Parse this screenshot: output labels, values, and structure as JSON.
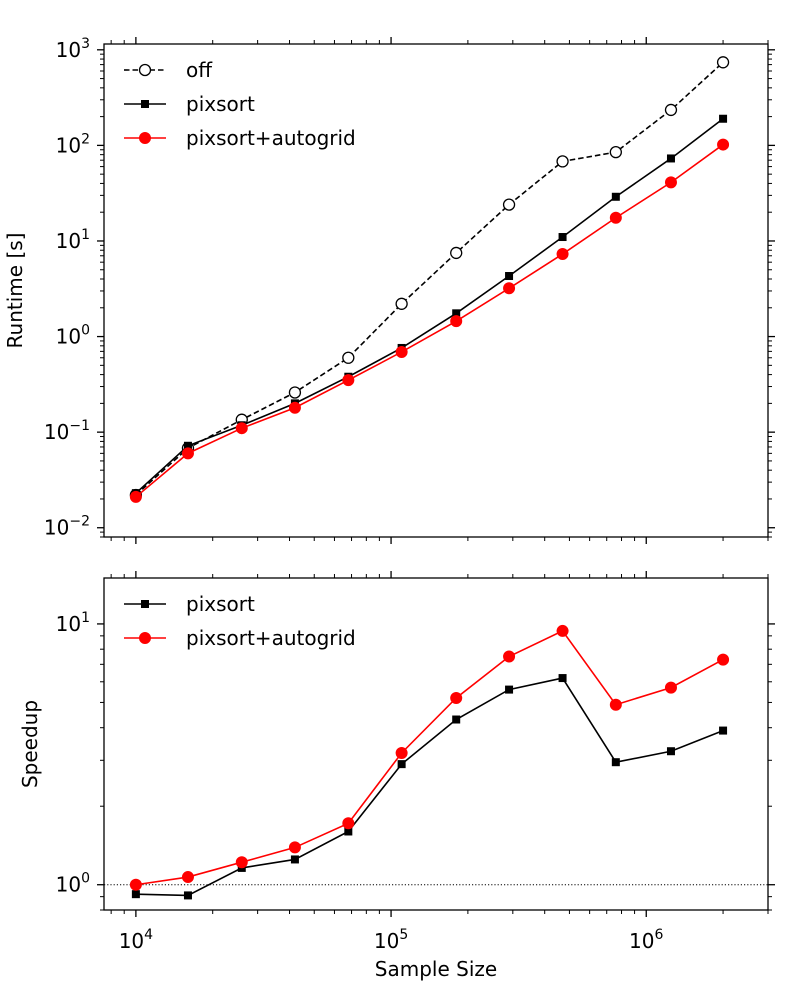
{
  "chart_data": [
    {
      "type": "line",
      "xscale": "log",
      "yscale": "log",
      "xlim": [
        7500,
        3000000
      ],
      "ylim": [
        0.008,
        1150
      ],
      "ylabel": "Runtime [s]",
      "xlabel": "",
      "legend_position": "top-left",
      "yticks": [
        {
          "value": 0.01,
          "base": "10",
          "exp": "−2"
        },
        {
          "value": 0.1,
          "base": "10",
          "exp": "−1"
        },
        {
          "value": 1,
          "base": "10",
          "exp": "0"
        },
        {
          "value": 10,
          "base": "10",
          "exp": "1"
        },
        {
          "value": 100,
          "base": "10",
          "exp": "2"
        },
        {
          "value": 1000,
          "base": "10",
          "exp": "3"
        }
      ],
      "x": [
        10000,
        16000,
        26000,
        42000,
        68000,
        110000,
        180000,
        290000,
        470000,
        760000,
        1250000,
        2000000
      ],
      "series": [
        {
          "name": "off",
          "color": "#000000",
          "dash": "dashed",
          "marker": "open-circle",
          "values": [
            0.022,
            0.068,
            0.135,
            0.26,
            0.6,
            2.2,
            7.5,
            24,
            68,
            85,
            235,
            740
          ]
        },
        {
          "name": "pixsort",
          "color": "#000000",
          "dash": "solid",
          "marker": "square",
          "values": [
            0.023,
            0.072,
            0.118,
            0.2,
            0.38,
            0.76,
            1.75,
            4.3,
            11,
            29,
            73,
            190
          ]
        },
        {
          "name": "pixsort+autogrid",
          "color": "#ff0000",
          "dash": "solid",
          "marker": "circle",
          "values": [
            0.021,
            0.06,
            0.11,
            0.18,
            0.35,
            0.69,
            1.45,
            3.2,
            7.3,
            17.5,
            41,
            102
          ]
        }
      ]
    },
    {
      "type": "line",
      "xscale": "log",
      "yscale": "log",
      "xlim": [
        7500,
        3000000
      ],
      "ylim": [
        0.8,
        15
      ],
      "ylabel": "Speedup",
      "xlabel": "Sample Size",
      "legend_position": "top-left",
      "reference_line": {
        "value": 1,
        "style": "dotted"
      },
      "yticks": [
        {
          "value": 1,
          "base": "10",
          "exp": "0"
        },
        {
          "value": 10,
          "base": "10",
          "exp": "1"
        }
      ],
      "xticks": [
        {
          "value": 10000,
          "base": "10",
          "exp": "4"
        },
        {
          "value": 100000,
          "base": "10",
          "exp": "5"
        },
        {
          "value": 1000000,
          "base": "10",
          "exp": "6"
        }
      ],
      "x": [
        10000,
        16000,
        26000,
        42000,
        68000,
        110000,
        180000,
        290000,
        470000,
        760000,
        1250000,
        2000000
      ],
      "series": [
        {
          "name": "pixsort",
          "color": "#000000",
          "dash": "solid",
          "marker": "square",
          "values": [
            0.92,
            0.91,
            1.16,
            1.25,
            1.6,
            2.9,
            4.3,
            5.6,
            6.2,
            2.95,
            3.25,
            3.9
          ]
        },
        {
          "name": "pixsort+autogrid",
          "color": "#ff0000",
          "dash": "solid",
          "marker": "circle",
          "values": [
            1.0,
            1.07,
            1.22,
            1.39,
            1.72,
            3.2,
            5.2,
            7.5,
            9.4,
            4.9,
            5.7,
            7.3
          ]
        }
      ]
    }
  ]
}
